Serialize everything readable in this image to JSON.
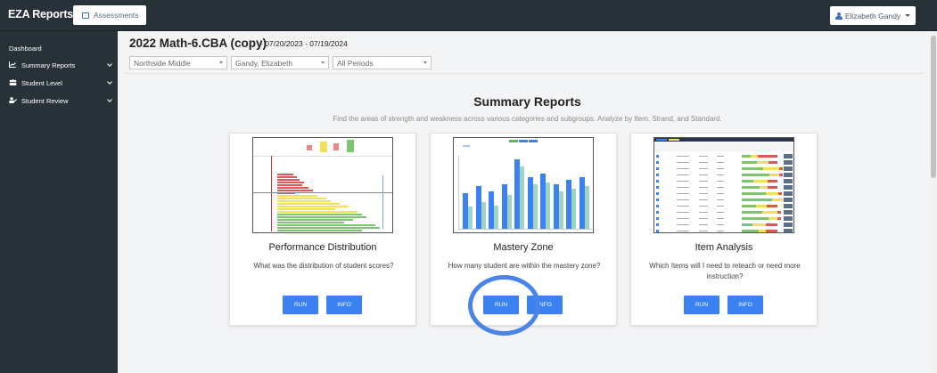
{
  "app": {
    "brand": "EZA Reports"
  },
  "topbar": {
    "assessments_label": "Assessments",
    "user_name": "Elizabeth Gandy"
  },
  "sidebar": {
    "items": [
      {
        "label": "Dashboard",
        "icon": "none"
      },
      {
        "label": "Summary Reports",
        "icon": "chart-line-icon"
      },
      {
        "label": "Student Level",
        "icon": "users-icon"
      },
      {
        "label": "Student Review",
        "icon": "user-check-icon"
      }
    ]
  },
  "header": {
    "title": "2022 Math-6.CBA (copy)",
    "date_range": "- 07/20/2023 - 07/19/2024"
  },
  "filters": {
    "school": "Northside Middle",
    "teacher": "Gandy, Elizabeth",
    "period": "All Periods"
  },
  "summary": {
    "title": "Summary Reports",
    "subtitle": "Find the areas of strength and weakness across various categories and subgroups. Analyze by Item, Strand, and Standard."
  },
  "cards": [
    {
      "title": "Performance Distribution",
      "description": "What was the distribution of student scores?",
      "run_label": "RUN",
      "info_label": "INFO"
    },
    {
      "title": "Mastery Zone",
      "description": "How many student are within the mastery zone?",
      "run_label": "RUN",
      "info_label": "INFO"
    },
    {
      "title": "Item Analysis",
      "description": "Which Items will I need to reteach or need more instruction?",
      "run_label": "RUN",
      "info_label": "INFO"
    }
  ],
  "colors": {
    "accent": "#3b82f0",
    "sidebar": "#273238",
    "highlight": "#4a84e8",
    "red": "#e05555",
    "yellow": "#f1e15a",
    "green": "#7dc46f"
  }
}
